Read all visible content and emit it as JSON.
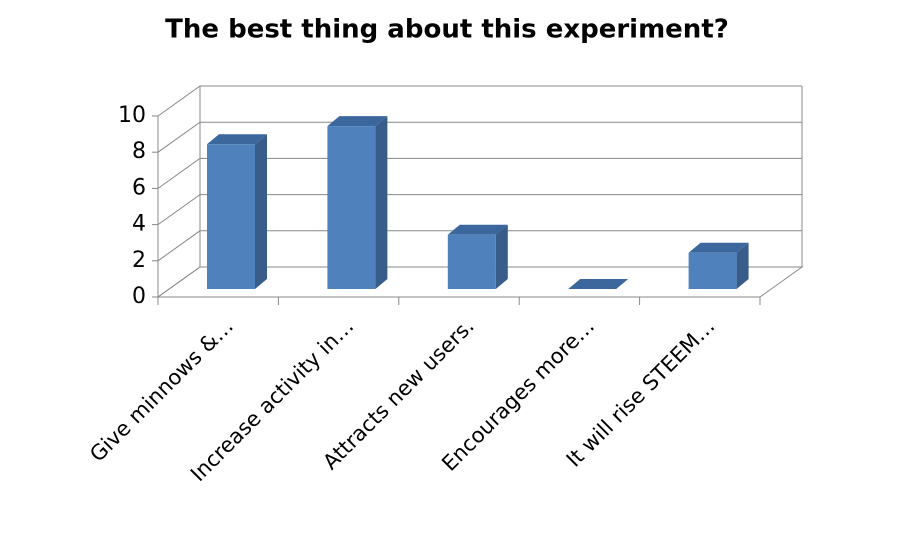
{
  "chart_data": {
    "type": "bar3d",
    "title": "The best thing about this experiment?",
    "categories": [
      "Give minnows &…",
      "Increase activity in…",
      "Attracts new users.",
      "Encourages more…",
      "It will rise STEEM…"
    ],
    "values": [
      8,
      9,
      3,
      0,
      2
    ],
    "color": "#4f81bd",
    "ylim": [
      0,
      10
    ],
    "yticks": [
      0,
      2,
      4,
      6,
      8,
      10
    ],
    "grid": true
  }
}
